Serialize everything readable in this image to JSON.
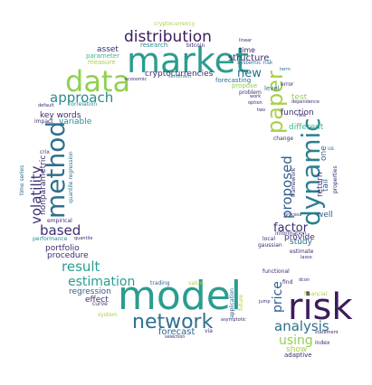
{
  "words": [
    {
      "text": "model",
      "color": "#2a9d8f"
    },
    {
      "text": "market",
      "color": "#2a9d8f"
    },
    {
      "text": "risk",
      "color": "#3b1c5a"
    },
    {
      "text": "data",
      "color": "#8fd14f"
    },
    {
      "text": "method",
      "color": "#2f6f8f"
    },
    {
      "text": "dynamic",
      "color": "#2a7f8f"
    },
    {
      "text": "paper",
      "color": "#a8d04a"
    },
    {
      "text": "network",
      "color": "#2f6f8f"
    },
    {
      "text": "distribution",
      "color": "#3b1c5a"
    },
    {
      "text": "volatility",
      "color": "#3b2c70"
    },
    {
      "text": "approach",
      "color": "#2a8a8f"
    },
    {
      "text": "result",
      "color": "#2a9d8f"
    },
    {
      "text": "based",
      "color": "#3b2c70"
    },
    {
      "text": "estimation",
      "color": "#2a9d8f"
    },
    {
      "text": "analysis",
      "color": "#2f6f8f"
    },
    {
      "text": "proposed",
      "color": "#2f5f8f"
    },
    {
      "text": "using",
      "color": "#8fd14f"
    },
    {
      "text": "price",
      "color": "#2f5f8f"
    },
    {
      "text": "factor",
      "color": "#3b2c70"
    },
    {
      "text": "new",
      "color": "#2a6f8f"
    },
    {
      "text": "structure",
      "color": "#3b2c70"
    },
    {
      "text": "key words",
      "color": "#3b2c70"
    },
    {
      "text": "variable",
      "color": "#2a8a8f"
    },
    {
      "text": "portfolio",
      "color": "#3b2c70"
    },
    {
      "text": "procedure",
      "color": "#3b2c70"
    },
    {
      "text": "regression",
      "color": "#2f5f8f"
    },
    {
      "text": "effect",
      "color": "#3b2c70"
    },
    {
      "text": "forecast",
      "color": "#2f5f8f"
    },
    {
      "text": "asset",
      "color": "#3b2c70"
    },
    {
      "text": "parameter",
      "color": "#3bb88f"
    },
    {
      "text": "measure",
      "color": "#a8d04a"
    },
    {
      "text": "research",
      "color": "#2a8a8f"
    },
    {
      "text": "cryptocurrencies",
      "color": "#3b2c70"
    },
    {
      "text": "forecasting",
      "color": "#2a6f8f"
    },
    {
      "text": "time",
      "color": "#3b2c70"
    },
    {
      "text": "level",
      "color": "#2a6f8f"
    },
    {
      "text": "propose",
      "color": "#8fd14f"
    },
    {
      "text": "test",
      "color": "#8fd14f"
    },
    {
      "text": "function",
      "color": "#3b2c70"
    },
    {
      "text": "different",
      "color": "#3bb88f"
    },
    {
      "text": "return",
      "color": "#3b2c70"
    },
    {
      "text": "one",
      "color": "#2a6f8f"
    },
    {
      "text": "tail",
      "color": "#2f5f8f"
    },
    {
      "text": "well",
      "color": "#2f5f8f"
    },
    {
      "text": "provide",
      "color": "#3b2c70"
    },
    {
      "text": "study",
      "color": "#2f6f8f"
    },
    {
      "text": "show",
      "color": "#a8d04a"
    },
    {
      "text": "adaptive",
      "color": "#3b2c70"
    },
    {
      "text": "cryptocurrency",
      "color": "#a8d04a"
    },
    {
      "text": "bitcoin",
      "color": "#3b2c70"
    },
    {
      "text": "linear",
      "color": "#3b2c70"
    },
    {
      "text": "systemic risk",
      "color": "#2a6f8f"
    },
    {
      "text": "economic",
      "color": "#3b2c70"
    },
    {
      "text": "sentiment",
      "color": "#2a8a8f"
    },
    {
      "text": "term",
      "color": "#2a6f8f"
    },
    {
      "text": "error",
      "color": "#3b2c70"
    },
    {
      "text": "work",
      "color": "#3b2c70"
    },
    {
      "text": "option",
      "color": "#3b2c70"
    },
    {
      "text": "problem",
      "color": "#3b2c70"
    },
    {
      "text": "two",
      "color": "#3b2c70"
    },
    {
      "text": "dependence",
      "color": "#3b2c70"
    },
    {
      "text": "rate",
      "color": "#3b2c70"
    },
    {
      "text": "change",
      "color": "#3b2c70"
    },
    {
      "text": "default",
      "color": "#3b2c70"
    },
    {
      "text": "correlation",
      "color": "#2a8a8f"
    },
    {
      "text": "impact",
      "color": "#3b2c70"
    },
    {
      "text": "crix",
      "color": "#3b2c70"
    },
    {
      "text": "time series",
      "color": "#2a6f8f"
    },
    {
      "text": "empirical",
      "color": "#3b2c70"
    },
    {
      "text": "performance",
      "color": "#2a8a8f"
    },
    {
      "text": "quantile",
      "color": "#3b2c70"
    },
    {
      "text": "nonparametric",
      "color": "#3b2c70"
    },
    {
      "text": "quantile regression",
      "color": "#2a6f8f"
    },
    {
      "text": "framework",
      "color": "#3b2c70"
    },
    {
      "text": "us",
      "color": "#2a6f8f"
    },
    {
      "text": "properties",
      "color": "#3b2c70"
    },
    {
      "text": "process",
      "color": "#3b2c70"
    },
    {
      "text": "information",
      "color": "#3b2c70"
    },
    {
      "text": "local",
      "color": "#3b2c70"
    },
    {
      "text": "gaussian",
      "color": "#3b2c70"
    },
    {
      "text": "estimate",
      "color": "#3b2c70"
    },
    {
      "text": "lasso",
      "color": "#3b2c70"
    },
    {
      "text": "trading",
      "color": "#2f5f8f"
    },
    {
      "text": "value",
      "color": "#a8d04a"
    },
    {
      "text": "application",
      "color": "#2f5f8f"
    },
    {
      "text": "future",
      "color": "#a8d04a"
    },
    {
      "text": "asymptotic",
      "color": "#3b2c70"
    },
    {
      "text": "via",
      "color": "#3b2c70"
    },
    {
      "text": "selection",
      "color": "#3b2c70"
    },
    {
      "text": "curve",
      "color": "#3b2c70"
    },
    {
      "text": "system",
      "color": "#a8d04a"
    },
    {
      "text": "functional",
      "color": "#3b2c70"
    },
    {
      "text": "find",
      "color": "#3b2c70"
    },
    {
      "text": "dcon",
      "color": "#3b2c70"
    },
    {
      "text": "financial",
      "color": "#a8d04a"
    },
    {
      "text": "jump",
      "color": "#3b2c70"
    },
    {
      "text": "index",
      "color": "#3b2c70"
    },
    {
      "text": "statement",
      "color": "#3b2c70"
    }
  ]
}
